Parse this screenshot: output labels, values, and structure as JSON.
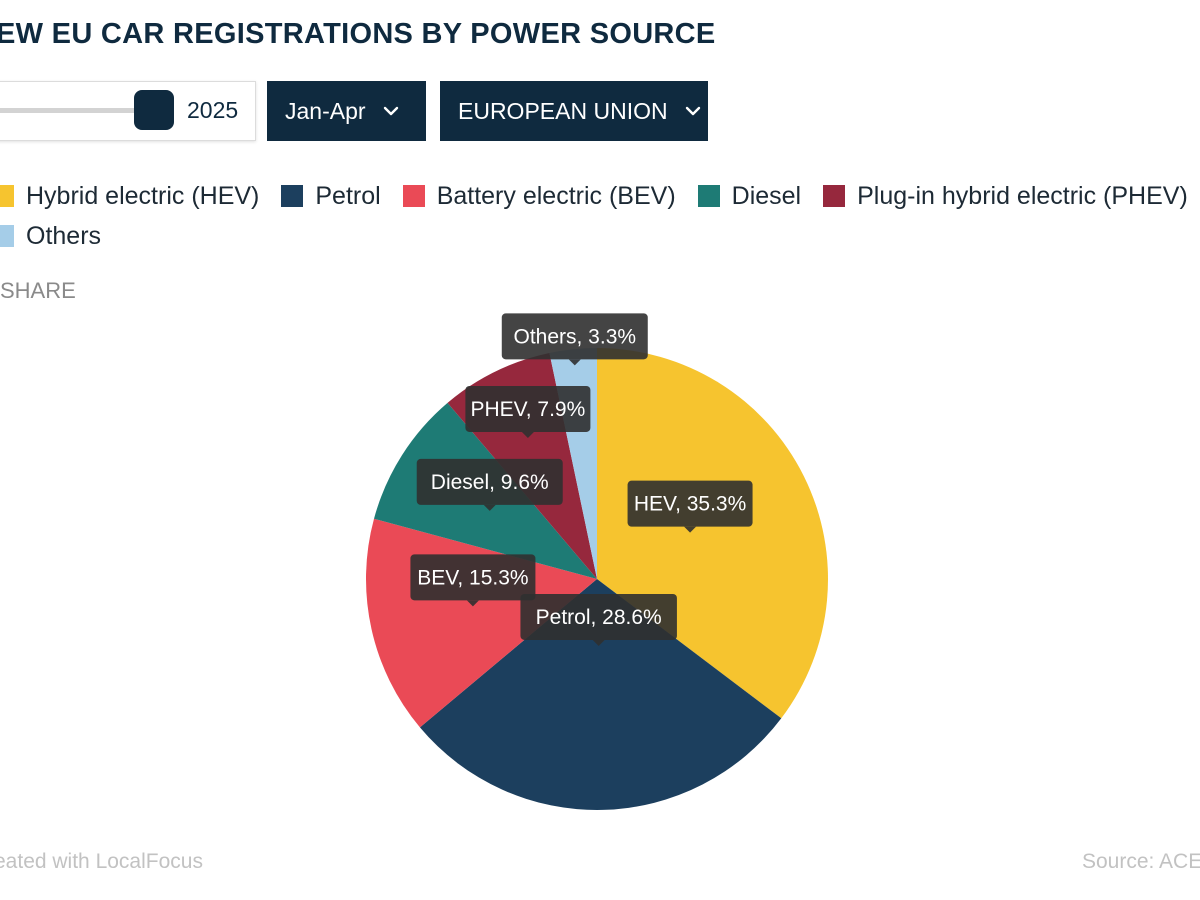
{
  "header": {
    "title": "EW EU CAR REGISTRATIONS BY POWER SOURCE"
  },
  "controls": {
    "year": "2025",
    "year_slider_value": 2025,
    "period_label": "Jan-Apr",
    "region_label": "EUROPEAN UNION"
  },
  "legend": {
    "items": [
      {
        "label": "Hybrid electric (HEV)",
        "color": "#f6c42f"
      },
      {
        "label": "Petrol",
        "color": "#1c3f5e"
      },
      {
        "label": "Battery electric (BEV)",
        "color": "#ea4a56"
      },
      {
        "label": "Diesel",
        "color": "#1e7b75"
      },
      {
        "label": "Plug-in hybrid electric (PHEV)",
        "color": "#96283d"
      },
      {
        "label": "Others",
        "color": "#a5cde8"
      }
    ]
  },
  "share_label": "SHARE",
  "chart_data": {
    "type": "pie",
    "title": "EW EU CAR REGISTRATIONS BY POWER SOURCE",
    "categories": [
      "HEV",
      "Petrol",
      "BEV",
      "Diesel",
      "PHEV",
      "Others"
    ],
    "values": [
      35.3,
      28.6,
      15.3,
      9.6,
      7.9,
      3.3
    ],
    "colors": [
      "#f6c42f",
      "#1c3f5e",
      "#ea4a56",
      "#1e7b75",
      "#96283d",
      "#a5cde8"
    ],
    "data_labels": [
      "HEV, 35.3%",
      "Petrol, 28.6%",
      "BEV, 15.3%",
      "Diesel, 9.6%",
      "PHEV, 7.9%",
      "Others, 3.3%"
    ],
    "legend_position": "top"
  },
  "footer": {
    "credit": "eated with LocalFocus",
    "source": "Source:  ACE"
  }
}
